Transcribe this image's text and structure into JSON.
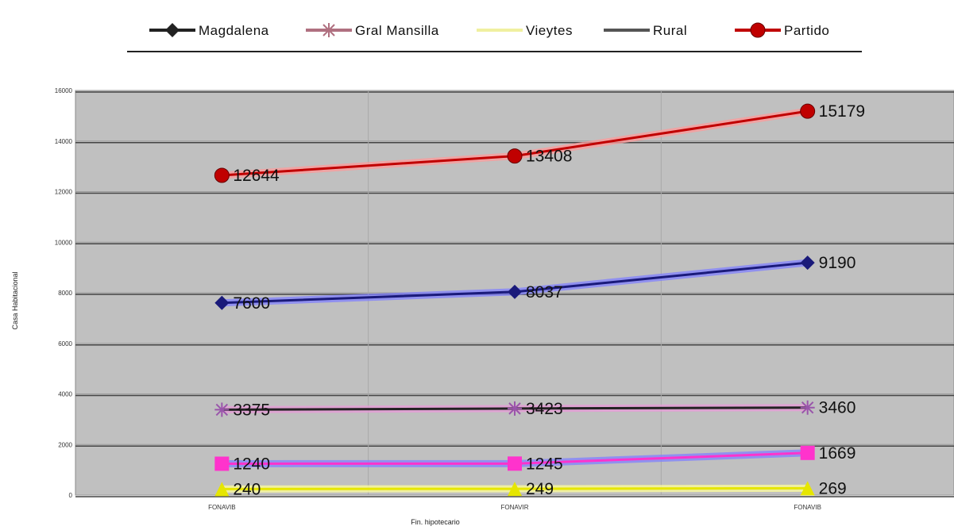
{
  "chart_data": {
    "type": "line",
    "categories": [
      "FONAVIB",
      "FONAVIR",
      "FONAVIB"
    ],
    "xlabel": "Fin. hipotecario",
    "ylabel": "Casa Habitacional",
    "ylim": [
      0,
      16000
    ],
    "yticks": [
      "0",
      "2000",
      "4000",
      "6000",
      "8000",
      "10000",
      "12000",
      "14000",
      "16000"
    ],
    "grid": true,
    "legend_position": "top",
    "series": [
      {
        "name": "Magdalena",
        "color": "#1a1a7a",
        "line_color": "#1a1a7a",
        "halo_color": "#8080ff",
        "marker": "diamond",
        "values": [
          7600,
          8037,
          9190
        ],
        "labels": [
          "7600",
          "8037",
          "9190"
        ]
      },
      {
        "name": "Gral Mansilla",
        "color": "#ff33cc",
        "line_color": "#ff33cc",
        "halo_color": "#8080ff",
        "marker": "square",
        "values": [
          1240,
          1245,
          1669
        ],
        "labels": [
          "1240",
          "1245",
          "1669"
        ]
      },
      {
        "name": "Vieytes",
        "color": "#e6e600",
        "line_color": "#e6e600",
        "halo_color": "#ffff99",
        "marker": "triangle",
        "values": [
          240,
          249,
          269
        ],
        "labels": [
          "240",
          "249",
          "269"
        ]
      },
      {
        "name": "Rural",
        "color": "#9955aa",
        "line_color": "#222222",
        "halo_color": "#e899d8",
        "marker": "star",
        "values": [
          3375,
          3423,
          3460
        ],
        "labels": [
          "3375",
          "3423",
          "3460"
        ]
      },
      {
        "name": "Partido",
        "color": "#c00000",
        "line_color": "#c00000",
        "halo_color": "#ff9999",
        "marker": "circle",
        "values": [
          12644,
          13408,
          15179
        ],
        "labels": [
          "12644",
          "13408",
          "15179"
        ]
      }
    ]
  },
  "legend": {
    "items": [
      {
        "label": "Magdalena",
        "line_color": "#222222",
        "marker": "diamond",
        "marker_color": "#222222"
      },
      {
        "label": "Gral Mansilla",
        "line_color": "#b07080",
        "marker": "star",
        "marker_color": "#b07080"
      },
      {
        "label": "Vieytes",
        "line_color": "#f0f0a0",
        "marker": "none",
        "marker_color": "#f0f0a0"
      },
      {
        "label": "Rural",
        "line_color": "#555555",
        "marker": "none",
        "marker_color": "#555555"
      },
      {
        "label": "Partido",
        "line_color": "#c00000",
        "marker": "circle",
        "marker_color": "#c00000"
      }
    ]
  }
}
